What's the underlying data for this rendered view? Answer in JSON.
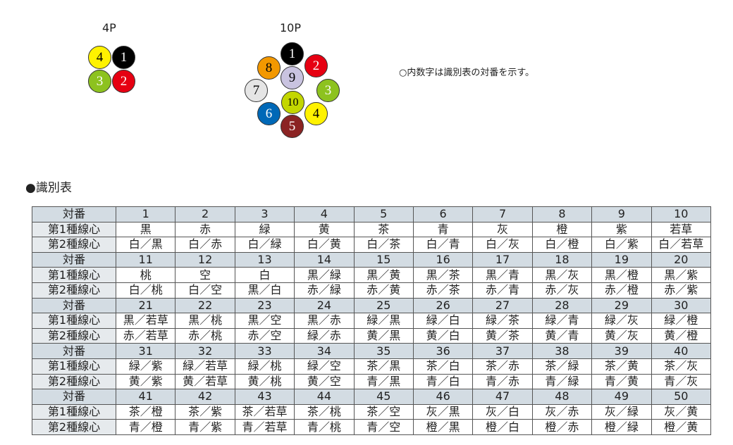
{
  "diagram_4p": {
    "label": "4P",
    "cores": [
      {
        "n": "4",
        "color": "#fff200",
        "text": "#000"
      },
      {
        "n": "1",
        "color": "#000000",
        "text": "#fff"
      },
      {
        "n": "3",
        "color": "#8dc21f",
        "text": "#fff"
      },
      {
        "n": "2",
        "color": "#e60012",
        "text": "#fff"
      }
    ]
  },
  "diagram_10p": {
    "label": "10P",
    "cores": [
      {
        "n": "1",
        "color": "#000000",
        "text": "#fff"
      },
      {
        "n": "2",
        "color": "#e60012",
        "text": "#fff"
      },
      {
        "n": "3",
        "color": "#8dc21f",
        "text": "#fff"
      },
      {
        "n": "4",
        "color": "#fff200",
        "text": "#000"
      },
      {
        "n": "5",
        "color": "#8b2323",
        "text": "#fff"
      },
      {
        "n": "6",
        "color": "#0068b7",
        "text": "#fff"
      },
      {
        "n": "7",
        "color": "#e5e5e5",
        "text": "#000"
      },
      {
        "n": "8",
        "color": "#f39800",
        "text": "#000"
      },
      {
        "n": "9",
        "color": "#c9c3e0",
        "text": "#000"
      },
      {
        "n": "10",
        "color": "#c3d600",
        "text": "#000"
      }
    ]
  },
  "note": "○内数字は識別表の対番を示す。",
  "table_title": "●識別表",
  "table": {
    "row_labels": [
      "対番",
      "第1種線心",
      "第2種線心"
    ],
    "blocks": [
      {
        "pairs": [
          "1",
          "2",
          "3",
          "4",
          "5",
          "6",
          "7",
          "8",
          "9",
          "10"
        ],
        "core1": [
          "黒",
          "赤",
          "緑",
          "黄",
          "茶",
          "青",
          "灰",
          "橙",
          "紫",
          "若草"
        ],
        "core2": [
          "白／黒",
          "白／赤",
          "白／緑",
          "白／黄",
          "白／茶",
          "白／青",
          "白／灰",
          "白／橙",
          "白／紫",
          "白／若草"
        ]
      },
      {
        "pairs": [
          "11",
          "12",
          "13",
          "14",
          "15",
          "16",
          "17",
          "18",
          "19",
          "20"
        ],
        "core1": [
          "桃",
          "空",
          "白",
          "黒／緑",
          "黒／黄",
          "黒／茶",
          "黒／青",
          "黒／灰",
          "黒／橙",
          "黒／紫"
        ],
        "core2": [
          "白／桃",
          "白／空",
          "黒／白",
          "赤／緑",
          "赤／黄",
          "赤／茶",
          "赤／青",
          "赤／灰",
          "赤／橙",
          "赤／紫"
        ]
      },
      {
        "pairs": [
          "21",
          "22",
          "23",
          "24",
          "25",
          "26",
          "27",
          "28",
          "29",
          "30"
        ],
        "core1": [
          "黒／若草",
          "黒／桃",
          "黒／空",
          "黒／赤",
          "緑／黒",
          "緑／白",
          "緑／茶",
          "緑／青",
          "緑／灰",
          "緑／橙"
        ],
        "core2": [
          "赤／若草",
          "赤／桃",
          "赤／空",
          "緑／赤",
          "黄／黒",
          "黄／白",
          "黄／茶",
          "黄／青",
          "黄／灰",
          "黄／橙"
        ]
      },
      {
        "pairs": [
          "31",
          "32",
          "33",
          "34",
          "35",
          "36",
          "37",
          "38",
          "39",
          "40"
        ],
        "core1": [
          "緑／紫",
          "緑／若草",
          "緑／桃",
          "緑／空",
          "茶／黒",
          "茶／白",
          "茶／赤",
          "茶／緑",
          "茶／黄",
          "茶／灰"
        ],
        "core2": [
          "黄／紫",
          "黄／若草",
          "黄／桃",
          "黄／空",
          "青／黒",
          "青／白",
          "青／赤",
          "青／緑",
          "青／黄",
          "青／灰"
        ]
      },
      {
        "pairs": [
          "41",
          "42",
          "43",
          "44",
          "45",
          "46",
          "47",
          "48",
          "49",
          "50"
        ],
        "core1": [
          "茶／橙",
          "茶／紫",
          "茶／若草",
          "茶／桃",
          "茶／空",
          "灰／黒",
          "灰／白",
          "灰／赤",
          "灰／緑",
          "灰／黄"
        ],
        "core2": [
          "青／橙",
          "青／紫",
          "青／若草",
          "青／桃",
          "青／空",
          "橙／黒",
          "橙／白",
          "橙／赤",
          "橙／緑",
          "橙／黄"
        ]
      }
    ]
  }
}
